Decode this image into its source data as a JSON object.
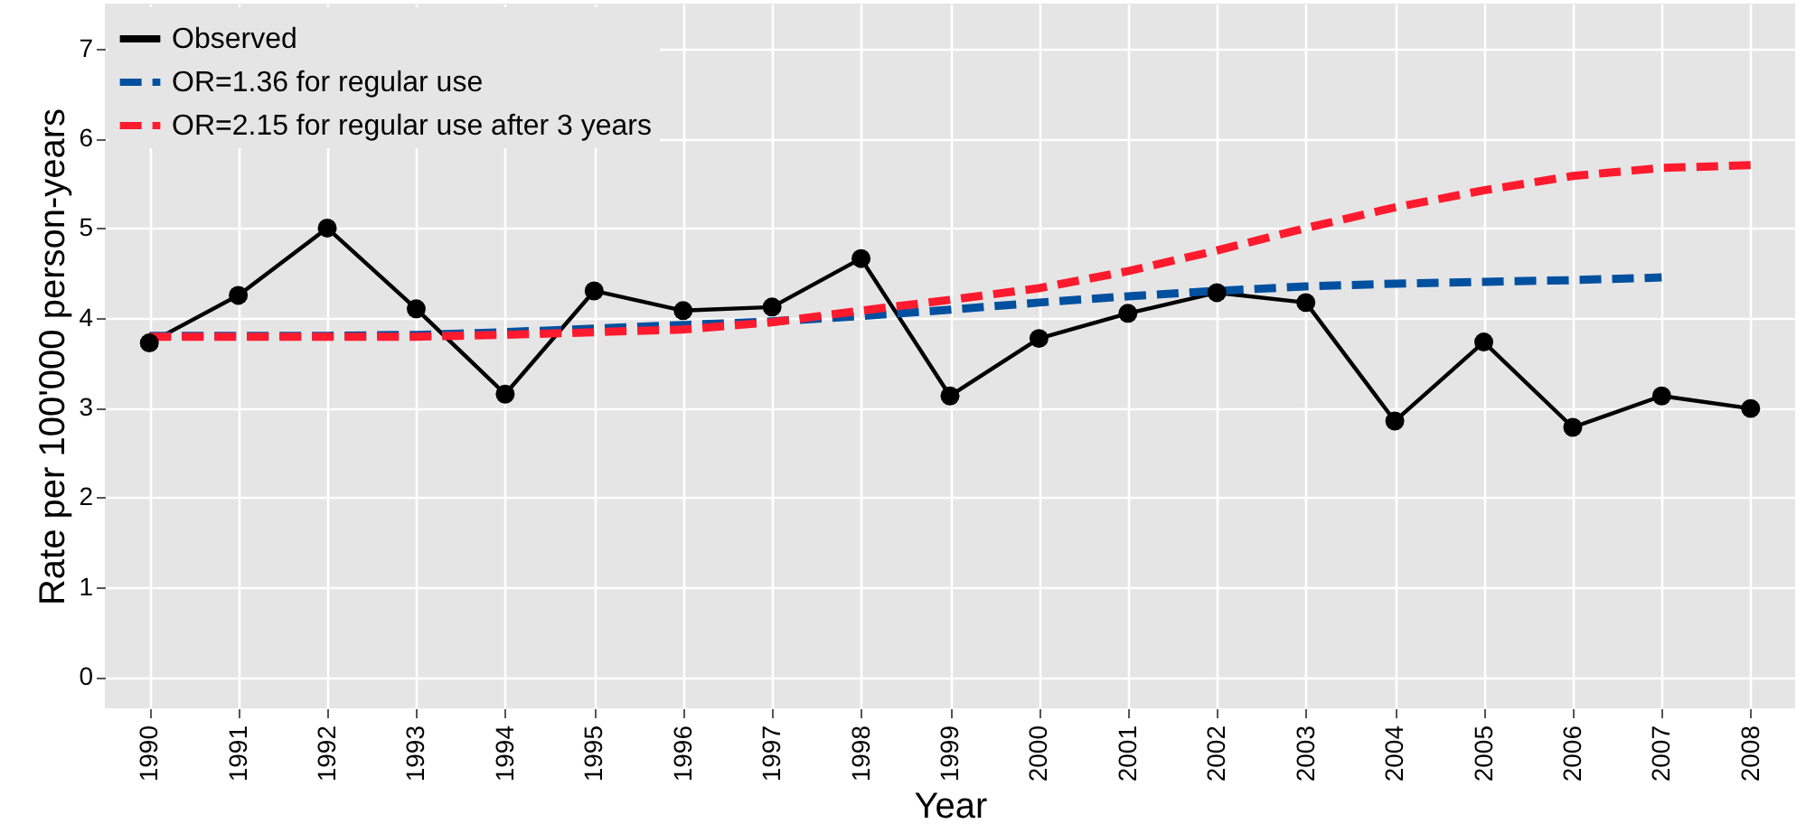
{
  "chart_data": {
    "type": "line",
    "xlabel": "Year",
    "ylabel": "Rate per 100'000 person-years",
    "categories": [
      "1990",
      "1991",
      "1992",
      "1993",
      "1994",
      "1995",
      "1996",
      "1997",
      "1998",
      "1999",
      "2000",
      "2001",
      "2002",
      "2003",
      "2004",
      "2005",
      "2006",
      "2007",
      "2008"
    ],
    "series": [
      {
        "name": "Observed",
        "color": "#000000",
        "marker": "circle",
        "line_style": "solid",
        "values": [
          3.72,
          4.25,
          5.0,
          4.1,
          3.15,
          4.3,
          4.08,
          4.12,
          4.66,
          3.13,
          3.77,
          4.05,
          4.28,
          4.17,
          2.85,
          3.73,
          2.78,
          3.13,
          2.99
        ]
      },
      {
        "name": "OR=1.36 for regular use",
        "color": "#0050a0",
        "marker": "none",
        "line_style": "dashed",
        "values": [
          3.8,
          3.8,
          3.8,
          3.81,
          3.84,
          3.88,
          3.92,
          3.96,
          4.02,
          4.09,
          4.17,
          4.24,
          4.3,
          4.35,
          4.38,
          4.4,
          4.42,
          4.45,
          null
        ]
      },
      {
        "name": "OR=2.15 for regular use after 3 years",
        "color": "#ff1a2e",
        "marker": "none",
        "line_style": "dashed",
        "values": [
          3.79,
          3.79,
          3.79,
          3.79,
          3.81,
          3.84,
          3.87,
          3.95,
          4.08,
          4.2,
          4.33,
          4.52,
          4.75,
          5.0,
          5.23,
          5.42,
          5.58,
          5.67,
          5.7
        ]
      }
    ],
    "ylim": [
      -0.35,
      7.5
    ],
    "yticks": [
      0,
      1,
      2,
      3,
      4,
      5,
      6,
      7
    ],
    "grid": true,
    "legend": "top left"
  }
}
